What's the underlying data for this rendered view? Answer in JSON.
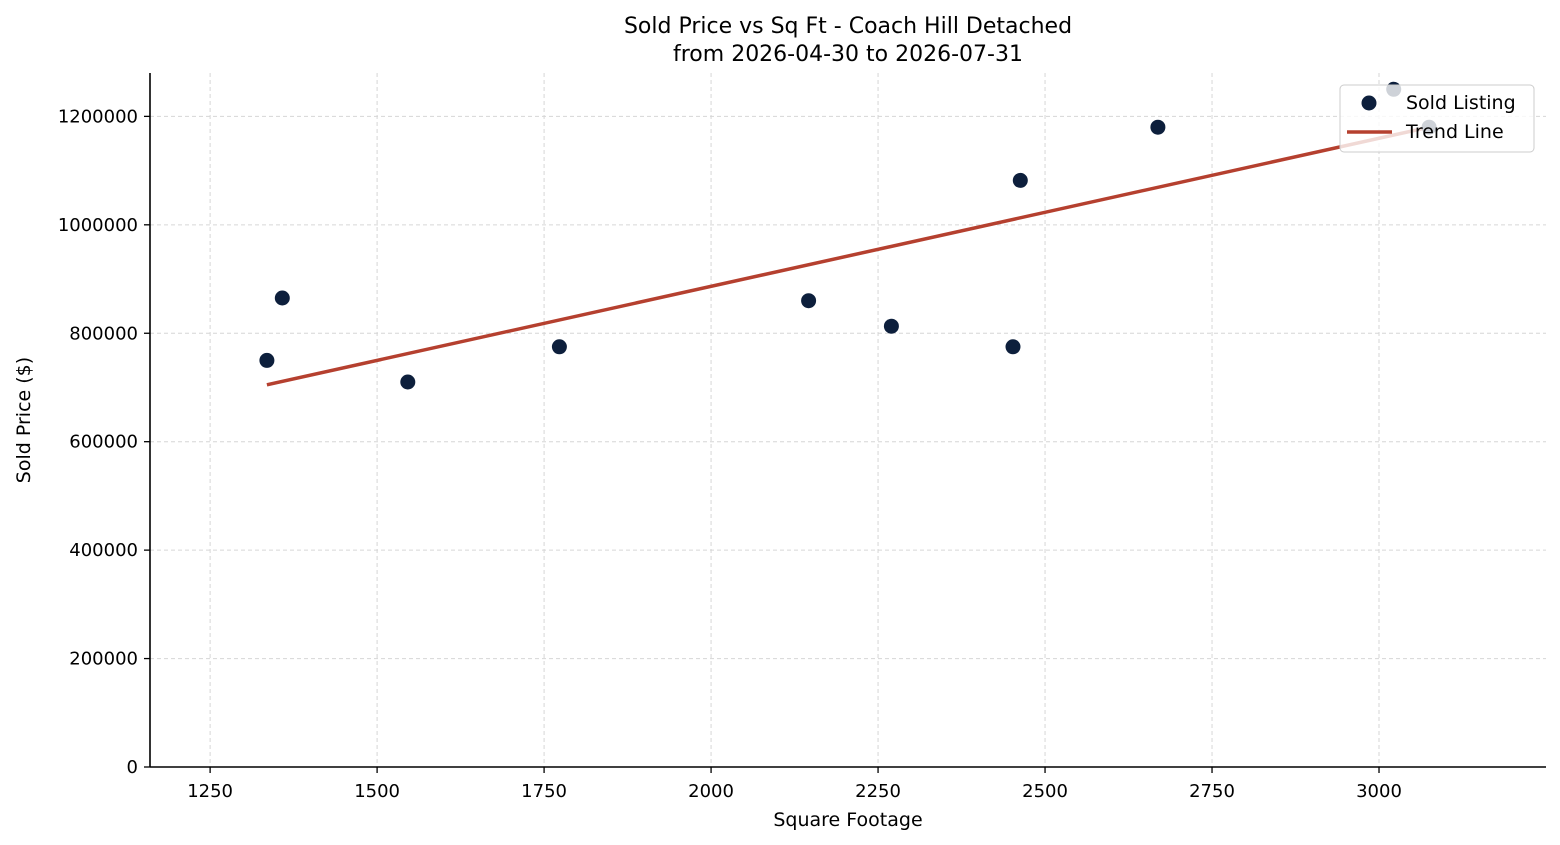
{
  "chart_data": {
    "type": "scatter",
    "title": "Sold Price vs Sq Ft - Coach Hill Detached",
    "subtitle": "from 2026-04-30 to 2026-07-31",
    "xlabel": "Square Footage",
    "ylabel": "Sold Price ($)",
    "xlim": [
      1160,
      3250
    ],
    "ylim": [
      0,
      1280000
    ],
    "xticks": [
      1250,
      1500,
      1750,
      2000,
      2250,
      2500,
      2750,
      3000
    ],
    "yticks": [
      0,
      200000,
      400000,
      600000,
      800000,
      1000000,
      1200000
    ],
    "grid": true,
    "legend_position": "top-right",
    "series": [
      {
        "name": "Sold Listing",
        "kind": "scatter",
        "color": "#0d1f3c",
        "points": [
          {
            "x": 1335,
            "y": 750000
          },
          {
            "x": 1358,
            "y": 865000
          },
          {
            "x": 1546,
            "y": 710000
          },
          {
            "x": 1773,
            "y": 775000
          },
          {
            "x": 2146,
            "y": 860000
          },
          {
            "x": 2270,
            "y": 813000
          },
          {
            "x": 2452,
            "y": 775000
          },
          {
            "x": 2463,
            "y": 1082000
          },
          {
            "x": 2669,
            "y": 1180000
          },
          {
            "x": 3022,
            "y": 1250000
          },
          {
            "x": 3075,
            "y": 1180000
          }
        ]
      },
      {
        "name": "Trend Line",
        "kind": "line",
        "color": "#b5402f",
        "points": [
          {
            "x": 1335,
            "y": 705000
          },
          {
            "x": 3075,
            "y": 1180000
          }
        ]
      }
    ]
  }
}
